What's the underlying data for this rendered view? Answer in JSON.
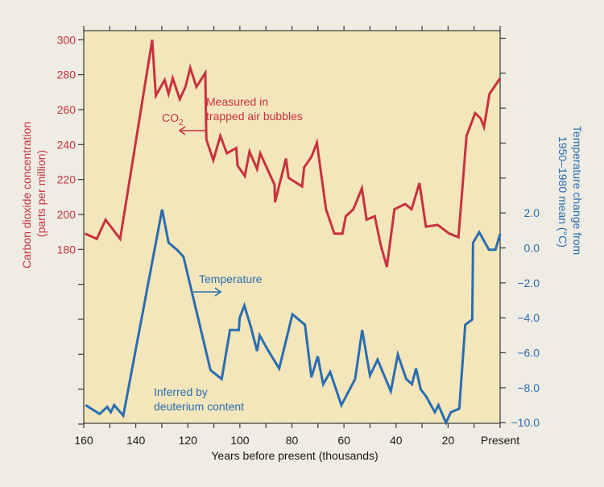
{
  "chart_data": {
    "type": "line",
    "xlabel": "Years before present (thousands)",
    "x_tick_labels": [
      "160",
      "140",
      "120",
      "100",
      "80",
      "60",
      "40",
      "20",
      "Present"
    ],
    "xlim": [
      160,
      0
    ],
    "ylabel_left": "Carbon dioxide concentration (parts per million)",
    "ylabel_left_lines": [
      "Carbon dioxide concentration",
      "(parts per million)"
    ],
    "y_left_ticks": [
      "300",
      "280",
      "260",
      "240",
      "220",
      "200",
      "180"
    ],
    "ylim_left": [
      100,
      300
    ],
    "ylabel_right": "Temperature change from 1950–1980 mean (°C)",
    "ylabel_right_lines": [
      "Temperature change from",
      "1950–1980 mean (°C)"
    ],
    "y_right_ticks": [
      "2.0",
      "0.0",
      "−2.0",
      "−4.0",
      "−6.0",
      "−8.0",
      "−10.0"
    ],
    "ylim_right": [
      -10,
      12
    ],
    "grid": false,
    "colors": {
      "co2": "#c8323f",
      "temperature": "#2a6db0",
      "plot_background": "#f3e6bb"
    },
    "annotations": {
      "co2_label": "CO",
      "co2_subscript": "2",
      "co2_note_lines": [
        "Measured in",
        "trapped air bubbles"
      ],
      "temp_label": "Temperature",
      "temp_note_lines": [
        "Inferred by",
        "deuterium content"
      ]
    },
    "series": [
      {
        "key": "co2",
        "axis": "left",
        "points": [
          [
            159.5,
            189
          ],
          [
            155,
            186
          ],
          [
            151.6,
            197
          ],
          [
            146,
            186
          ],
          [
            133.7,
            300
          ],
          [
            132.3,
            268
          ],
          [
            128.9,
            277
          ],
          [
            127.4,
            269
          ],
          [
            125.8,
            278
          ],
          [
            123.1,
            266
          ],
          [
            120.9,
            273
          ],
          [
            119.1,
            284
          ],
          [
            116.7,
            273
          ],
          [
            113.3,
            281
          ],
          [
            112.9,
            243
          ],
          [
            110.2,
            231
          ],
          [
            107.5,
            245
          ],
          [
            105,
            235
          ],
          [
            101.4,
            238
          ],
          [
            100.9,
            228
          ],
          [
            98.1,
            222
          ],
          [
            96.3,
            236
          ],
          [
            93.4,
            226
          ],
          [
            92.2,
            235
          ],
          [
            86.7,
            217
          ],
          [
            86.5,
            207
          ],
          [
            82.3,
            232
          ],
          [
            81.3,
            221
          ],
          [
            76.1,
            216
          ],
          [
            75.3,
            227
          ],
          [
            72.5,
            233
          ],
          [
            70.4,
            241
          ],
          [
            66.9,
            203
          ],
          [
            63.7,
            189
          ],
          [
            60.6,
            189
          ],
          [
            59.3,
            199
          ],
          [
            56.4,
            203
          ],
          [
            53.1,
            215
          ],
          [
            51.3,
            197
          ],
          [
            48.2,
            199
          ],
          [
            45.8,
            182
          ],
          [
            43.5,
            170
          ],
          [
            40.6,
            203
          ],
          [
            36.5,
            206
          ],
          [
            34,
            203
          ],
          [
            31,
            218
          ],
          [
            28.5,
            193
          ],
          [
            24,
            194
          ],
          [
            19.5,
            189
          ],
          [
            16,
            187
          ],
          [
            12.9,
            245
          ],
          [
            9.6,
            258
          ],
          [
            7.5,
            255
          ],
          [
            6.2,
            250
          ],
          [
            4.1,
            269
          ],
          [
            0,
            278
          ]
        ]
      },
      {
        "key": "temperature",
        "axis": "right",
        "points": [
          [
            159.3,
            -9.0
          ],
          [
            153.9,
            -9.5
          ],
          [
            151,
            -9.1
          ],
          [
            149.6,
            -9.4
          ],
          [
            148.3,
            -9.0
          ],
          [
            144.8,
            -9.6
          ],
          [
            129.9,
            2.2
          ],
          [
            127.4,
            0.3
          ],
          [
            124.2,
            -0.1
          ],
          [
            121.7,
            -0.5
          ],
          [
            111.3,
            -7.0
          ],
          [
            107,
            -7.5
          ],
          [
            103.8,
            -4.7
          ],
          [
            100.4,
            -4.7
          ],
          [
            100.1,
            -4.0
          ],
          [
            98.3,
            -3.3
          ],
          [
            95.8,
            -4.5
          ],
          [
            93.4,
            -5.9
          ],
          [
            92.4,
            -5.0
          ],
          [
            89.4,
            -5.8
          ],
          [
            84.9,
            -6.9
          ],
          [
            79.8,
            -3.8
          ],
          [
            75,
            -4.4
          ],
          [
            72.5,
            -7.4
          ],
          [
            70.1,
            -6.2
          ],
          [
            68,
            -7.8
          ],
          [
            65.3,
            -7.1
          ],
          [
            61,
            -9.0
          ],
          [
            55.7,
            -7.5
          ],
          [
            53,
            -4.7
          ],
          [
            50,
            -7.3
          ],
          [
            47.1,
            -6.4
          ],
          [
            42,
            -8.2
          ],
          [
            39.3,
            -6.1
          ],
          [
            36.1,
            -7.5
          ],
          [
            33.9,
            -7.8
          ],
          [
            32.3,
            -6.9
          ],
          [
            30.5,
            -8.1
          ],
          [
            28.4,
            -8.5
          ],
          [
            25.1,
            -9.4
          ],
          [
            23.7,
            -9.0
          ],
          [
            20.8,
            -10.0
          ],
          [
            18.9,
            -9.4
          ],
          [
            15.7,
            -9.2
          ],
          [
            13.4,
            -4.4
          ],
          [
            10.7,
            -4.1
          ],
          [
            10.4,
            0.3
          ],
          [
            8,
            0.9
          ],
          [
            4.3,
            -0.1
          ],
          [
            1.8,
            -0.1
          ],
          [
            0,
            0.8
          ]
        ]
      }
    ]
  }
}
